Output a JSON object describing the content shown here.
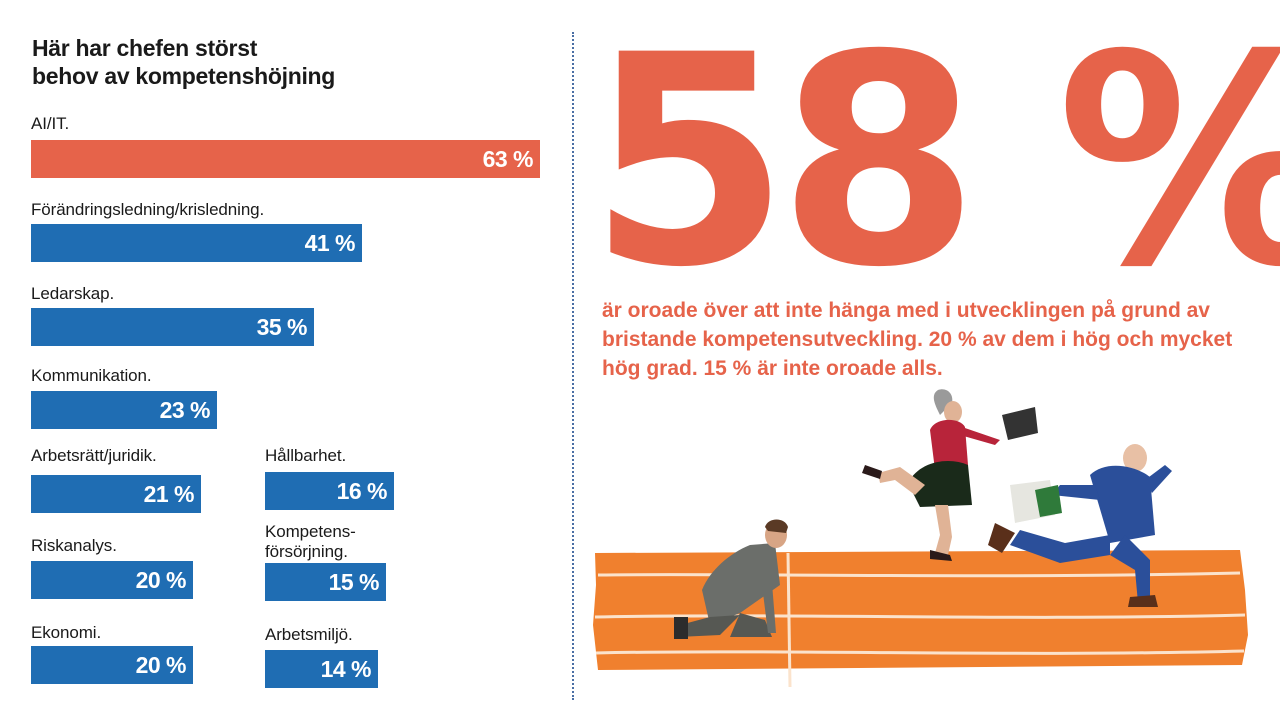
{
  "colors": {
    "accent": "#e6634a",
    "blue": "#1f6db3",
    "track": "#f0802e"
  },
  "chart_data": {
    "type": "bar",
    "orientation": "horizontal",
    "title": "Här har chefen störst behov av kompetenshöjning",
    "title_lines": [
      "Här har chefen störst",
      "behov av kompetenshöjning"
    ],
    "unit": "%",
    "xlim": [
      0,
      63
    ],
    "grid": false,
    "legend": "none",
    "categories": [
      "AI/IT.",
      "Förändringsledning/krisledning.",
      "Ledarskap.",
      "Kommunikation.",
      "Arbetsrätt/juridik.",
      "Riskanalys.",
      "Ekonomi.",
      "Hållbarhet.",
      "Kompetens-försörjning.",
      "Arbetsmiljö."
    ],
    "category_lines": [
      [
        "AI/IT."
      ],
      [
        "Förändringsledning/krisledning."
      ],
      [
        "Ledarskap."
      ],
      [
        "Kommunikation."
      ],
      [
        "Arbetsrätt/juridik."
      ],
      [
        "Riskanalys."
      ],
      [
        "Ekonomi."
      ],
      [
        "Hållbarhet."
      ],
      [
        "Kompetens-",
        "försörjning."
      ],
      [
        "Arbetsmiljö."
      ]
    ],
    "values": [
      63,
      41,
      35,
      23,
      21,
      20,
      20,
      16,
      15,
      14
    ],
    "value_labels": [
      "63 %",
      "41 %",
      "35 %",
      "23 %",
      "21 %",
      "20 %",
      "20 %",
      "16 %",
      "15 %",
      "14 %"
    ],
    "highlight_color": "#e6634a",
    "bar_color": "#1f6db3"
  },
  "stat": {
    "value": "58 %",
    "text": "är oroade över att inte hänga med i utvecklingen på grund av bristande kompetensutveckling. 20 % av dem i hög och mycket hög grad. 15 % är inte oroade alls.",
    "color": "#e6634a"
  },
  "illustration": {
    "icon": "running-track-icon",
    "figures": [
      "kneeling-man-icon",
      "running-woman-laptop-icon",
      "running-man-papers-icon"
    ]
  }
}
